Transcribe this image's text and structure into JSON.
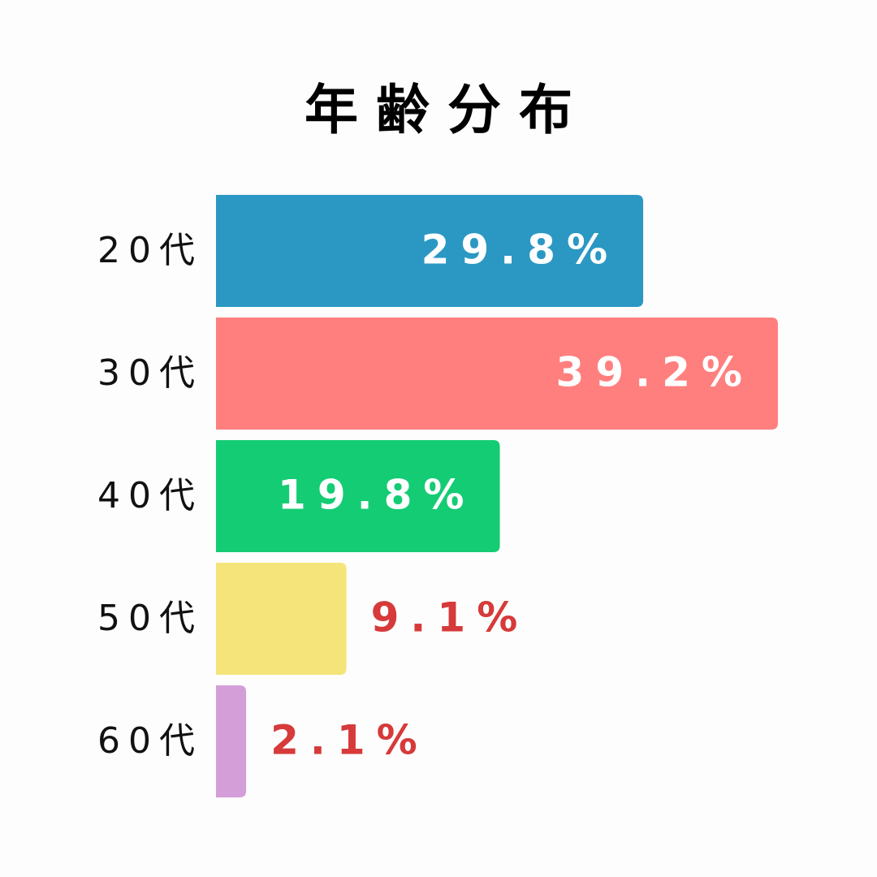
{
  "chart_data": {
    "type": "bar",
    "orientation": "horizontal",
    "title": "年齢分布",
    "categories": [
      "20代",
      "30代",
      "40代",
      "50代",
      "60代"
    ],
    "values": [
      29.8,
      39.2,
      19.8,
      9.1,
      2.1
    ],
    "value_labels": [
      "29.8%",
      "39.2%",
      "19.8%",
      "9.1%",
      "2.1%"
    ],
    "colors": [
      "#2b98c4",
      "#ff7f7f",
      "#14cc74",
      "#f5e47a",
      "#d49ed8"
    ]
  }
}
